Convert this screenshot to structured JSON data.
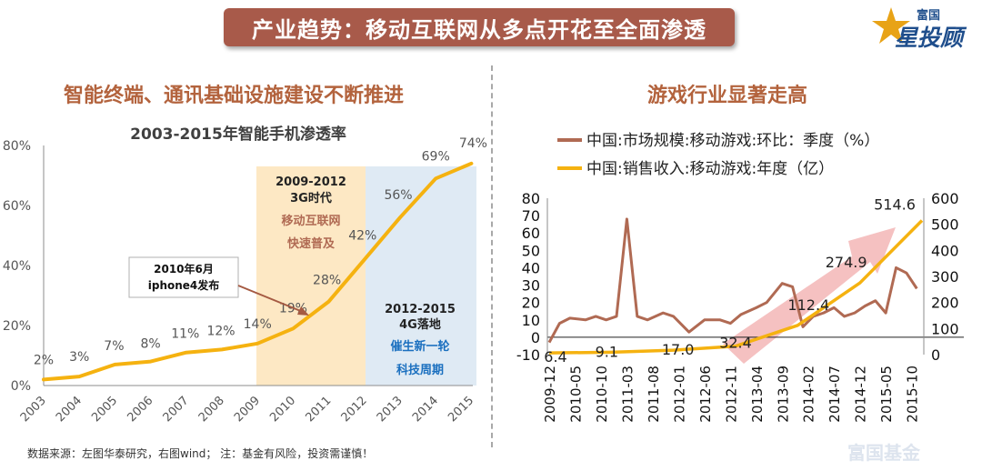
{
  "header": {
    "title": "产业趋势：移动互联网从多点开花至全面渗透",
    "logo_top": "富国",
    "logo_main": "星投顾"
  },
  "left_section_title": "智能终端、通讯基础设施建设不断推进",
  "right_section_title": "游戏行业显著走高",
  "footer": {
    "source": "数据来源：左图华泰研究，右图wind； 注：基金有风险，投资需谨慎！",
    "watermark": "富国基金"
  },
  "colors": {
    "title_bg": "#a85a4a",
    "section_title": "#b3633d",
    "line_orange": "#f5b210",
    "line_brown": "#b06a53",
    "band_3g": "#fde8c4",
    "band_4g": "#dfeaf4",
    "arrow": "#f3b2b2"
  },
  "chart_data": [
    {
      "type": "line",
      "title": "2003-2015年智能手机渗透率",
      "categories": [
        "2003",
        "2004",
        "2005",
        "2006",
        "2007",
        "2008",
        "2009",
        "2010",
        "2011",
        "2012",
        "2013",
        "2014",
        "2015"
      ],
      "series": [
        {
          "values": [
            2,
            3,
            7,
            8,
            11,
            12,
            14,
            19,
            28,
            42,
            56,
            69,
            74
          ]
        }
      ],
      "data_labels": [
        "2%",
        "3%",
        "7%",
        "8%",
        "11%",
        "12%",
        "14%",
        "19%",
        "28%",
        "42%",
        "56%",
        "69%",
        "74%"
      ],
      "y_ticks": [
        "0%",
        "20%",
        "40%",
        "60%",
        "80%"
      ],
      "ylim": [
        0,
        80
      ],
      "bands": [
        {
          "lines": [
            "2009-2012",
            "3G时代",
            "移动互联网",
            "快速普及"
          ]
        },
        {
          "lines": [
            "2012-2015",
            "4G落地",
            "催生新一轮",
            "科技周期"
          ]
        }
      ],
      "callout": [
        "2010年6月",
        "iphone4发布"
      ]
    },
    {
      "type": "line",
      "x_ticks": [
        "2009-12",
        "2010-05",
        "2010-10",
        "2011-03",
        "2011-08",
        "2012-01",
        "2012-06",
        "2012-11",
        "2013-04",
        "2013-09",
        "2014-02",
        "2014-07",
        "2014-12",
        "2015-05",
        "2015-10"
      ],
      "y_left_ticks": [
        "-10",
        "0",
        "10",
        "20",
        "30",
        "40",
        "50",
        "60",
        "70",
        "80"
      ],
      "y_right_ticks": [
        "0",
        "100",
        "200",
        "300",
        "400",
        "500",
        "600"
      ],
      "ylim_left": [
        -10,
        80
      ],
      "ylim_right": [
        0,
        600
      ],
      "legend_placement": "top",
      "series": [
        {
          "name": "中国:市场规模:移动游戏:环比：季度（%）",
          "axis": "left",
          "x": [
            "2009-12",
            "2010-02",
            "2010-04",
            "2010-07",
            "2010-09",
            "2010-11",
            "2011-01",
            "2011-03",
            "2011-05",
            "2011-07",
            "2011-10",
            "2011-12",
            "2012-03",
            "2012-06",
            "2012-09",
            "2012-11",
            "2013-01",
            "2013-04",
            "2013-06",
            "2013-09",
            "2013-11",
            "2014-01",
            "2014-03",
            "2014-05",
            "2014-07",
            "2014-09",
            "2014-11",
            "2015-01",
            "2015-03",
            "2015-05",
            "2015-07",
            "2015-09",
            "2015-11"
          ],
          "values": [
            -3,
            8,
            11,
            10,
            12,
            10,
            12,
            68,
            12,
            10,
            14,
            12,
            3,
            10,
            10,
            8,
            13,
            17,
            20,
            31,
            29,
            6,
            12,
            14,
            17,
            12,
            14,
            18,
            21,
            14,
            40,
            37,
            28
          ]
        },
        {
          "name": "中国:销售收入:移动游戏:年度（亿）",
          "axis": "right",
          "x": [
            "2009-12",
            "2010-12",
            "2011-12",
            "2012-12",
            "2013-12",
            "2014-12",
            "2015-12"
          ],
          "values": [
            6.4,
            9.1,
            17.0,
            32.4,
            112.4,
            274.9,
            514.6
          ],
          "data_labels": [
            "6.4",
            "9.1",
            "17.0",
            "32.4",
            "112.4",
            "274.9",
            "514.6"
          ]
        }
      ]
    }
  ]
}
